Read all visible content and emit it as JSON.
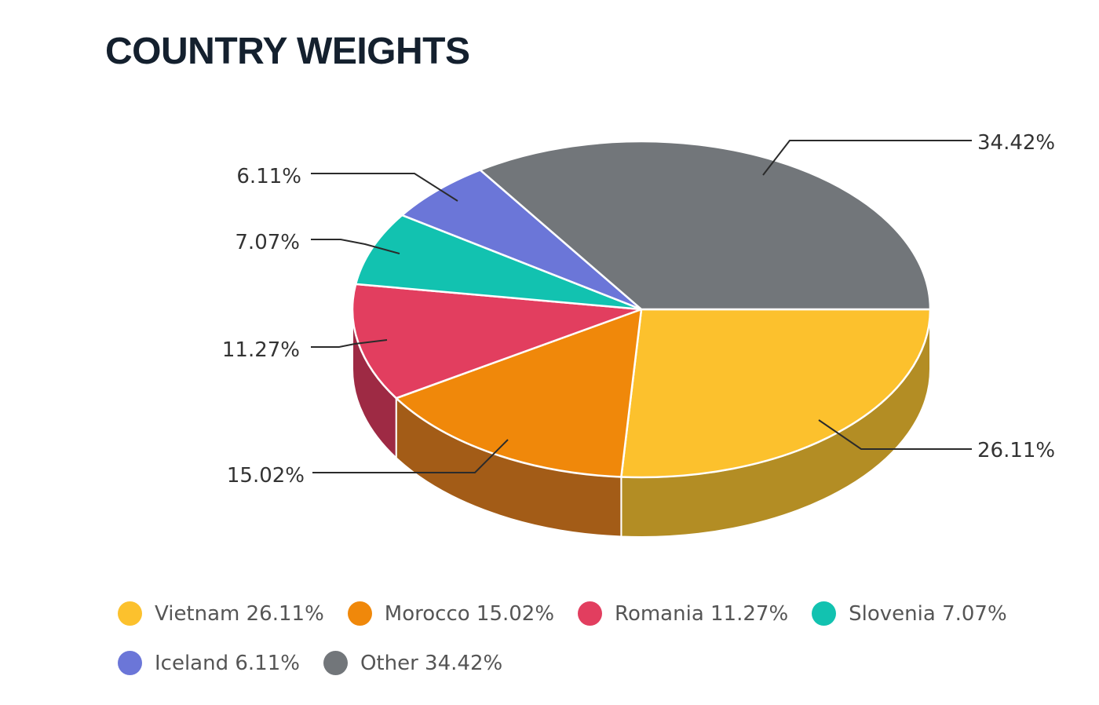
{
  "chart_data": {
    "type": "pie",
    "title": "COUNTRY WEIGHTS",
    "legend_position": "bottom",
    "slices": [
      {
        "name": "Vietnam",
        "value": 26.11,
        "label": "26.11%",
        "legend": "Vietnam 26.11%",
        "color": "#fcc12d",
        "side_color": "#b38d24"
      },
      {
        "name": "Morocco",
        "value": 15.02,
        "label": "15.02%",
        "legend": "Morocco 15.02%",
        "color": "#f0880a",
        "side_color": "#a35c17"
      },
      {
        "name": "Romania",
        "value": 11.27,
        "label": "11.27%",
        "legend": "Romania 11.27%",
        "color": "#e23e5f",
        "side_color": "#9e2a44"
      },
      {
        "name": "Slovenia",
        "value": 7.07,
        "label": "7.07%",
        "legend": "Slovenia 7.07%",
        "color": "#12c2b0",
        "side_color": "#0d8a7e"
      },
      {
        "name": "Iceland",
        "value": 6.11,
        "label": "6.11%",
        "legend": "Iceland 6.11%",
        "color": "#6b76d8",
        "side_color": "#4c549c"
      },
      {
        "name": "Other",
        "value": 34.42,
        "label": "34.42%",
        "legend": "Other 34.42%",
        "color": "#72767a",
        "side_color": "#55585b"
      }
    ]
  }
}
